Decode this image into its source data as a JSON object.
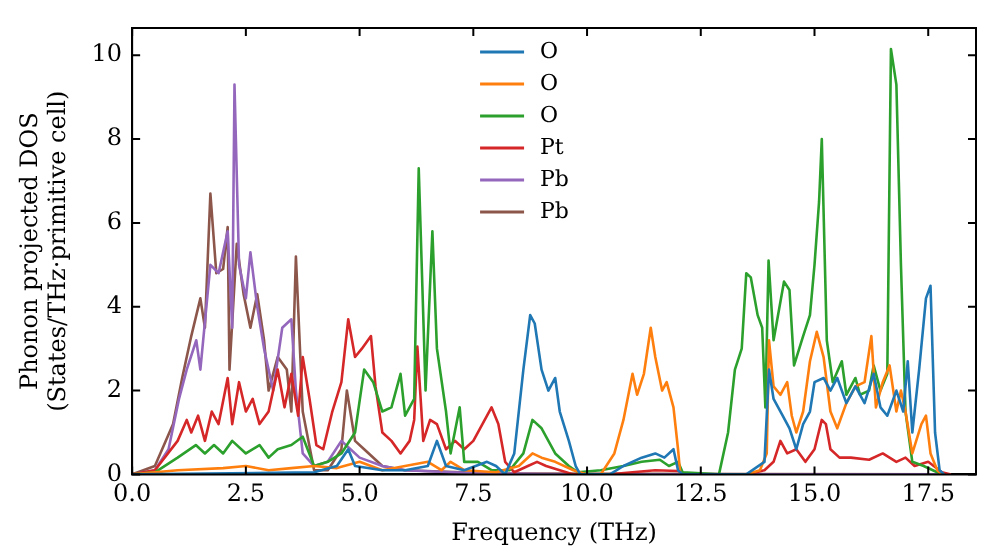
{
  "chart_data": {
    "type": "line",
    "xlabel": "Frequency (THz)",
    "ylabel": "Phonon projected DOS\n(States/THz·primitive cell)",
    "xlim": [
      0,
      18.55
    ],
    "ylim": [
      0,
      10.65
    ],
    "xticks": [
      {
        "value": 0,
        "label": "0.0"
      },
      {
        "value": 2.5,
        "label": "2.5"
      },
      {
        "value": 5,
        "label": "5.0"
      },
      {
        "value": 7.5,
        "label": "7.5"
      },
      {
        "value": 10,
        "label": "10.0"
      },
      {
        "value": 12.5,
        "label": "12.5"
      },
      {
        "value": 15,
        "label": "15.0"
      },
      {
        "value": 17.5,
        "label": "17.5"
      }
    ],
    "yticks": [
      0,
      2,
      4,
      6,
      8,
      10
    ],
    "grid": false,
    "legend": "top",
    "series": [
      {
        "name": "O",
        "color": "#1f77b4",
        "x": [
          0,
          4,
          4.5,
          4.75,
          4.9,
          5.5,
          6,
          6.5,
          6.7,
          6.9,
          7.3,
          7.8,
          8,
          8.2,
          8.4,
          8.6,
          8.75,
          8.85,
          9,
          9.15,
          9.3,
          9.4,
          9.6,
          9.75,
          9.85,
          10.5,
          10.8,
          11.2,
          11.5,
          11.7,
          11.9,
          12,
          12.1,
          13.5,
          13.9,
          14,
          14.1,
          14.3,
          14.45,
          14.6,
          14.75,
          14.9,
          15,
          15.2,
          15.35,
          15.5,
          15.7,
          15.9,
          16.1,
          16.3,
          16.45,
          16.6,
          16.8,
          16.95,
          17.05,
          17.15,
          17.3,
          17.45,
          17.55,
          17.65,
          17.75,
          17.85
        ],
        "values": [
          0,
          0.05,
          0.2,
          0.6,
          0.2,
          0.1,
          0.1,
          0.2,
          0.8,
          0.2,
          0.1,
          0.3,
          0.2,
          0,
          0.5,
          2.5,
          3.8,
          3.6,
          2.5,
          2,
          2.3,
          1.5,
          0.8,
          0.2,
          0,
          0,
          0.2,
          0.4,
          0.5,
          0.4,
          0.6,
          0.1,
          0,
          0,
          0.3,
          2.5,
          1.8,
          1.4,
          1.1,
          0.6,
          1.2,
          1.5,
          2.2,
          2.3,
          2,
          2.3,
          1.7,
          2.1,
          1.7,
          2.4,
          1.6,
          1.4,
          2,
          1.5,
          2.7,
          1,
          2.5,
          4.2,
          4.5,
          1,
          0.1,
          0
        ]
      },
      {
        "name": "O",
        "color": "#ff7f0e",
        "x": [
          0,
          1,
          2,
          2.5,
          3,
          3.5,
          4,
          4.5,
          5,
          5.5,
          6,
          6.5,
          6.8,
          7,
          7.3,
          8,
          8.5,
          8.8,
          9,
          9.3,
          9.7,
          10,
          10.3,
          10.6,
          10.8,
          11,
          11.1,
          11.25,
          11.4,
          11.5,
          11.65,
          11.75,
          11.9,
          12,
          12.05,
          13.5,
          13.8,
          13.95,
          14,
          14.1,
          14.25,
          14.4,
          14.5,
          14.6,
          14.75,
          14.9,
          15.05,
          15.2,
          15.35,
          15.5,
          15.7,
          15.9,
          16.1,
          16.25,
          16.35,
          16.5,
          16.65,
          16.8,
          16.9,
          17,
          17.15,
          17.35,
          17.45,
          17.55,
          17.7,
          17.8
        ],
        "values": [
          0,
          0.1,
          0.15,
          0.2,
          0.1,
          0.15,
          0.2,
          0.15,
          0.3,
          0.1,
          0.2,
          0.3,
          0.1,
          0.3,
          0.1,
          0.05,
          0.2,
          0.5,
          0.4,
          0.3,
          0.1,
          0,
          0,
          0.5,
          1.3,
          2.4,
          1.9,
          2.4,
          3.5,
          2.8,
          2,
          2.2,
          1.6,
          0.6,
          0,
          0,
          0.1,
          0.5,
          3.2,
          2.1,
          1.9,
          2.2,
          1.4,
          1,
          1.5,
          2.7,
          3.4,
          2.8,
          1.5,
          1.1,
          1.7,
          2.1,
          2.2,
          3.3,
          1.6,
          2.2,
          2.6,
          1.5,
          2,
          1.5,
          0.5,
          1.2,
          1.4,
          0.5,
          0.1,
          0
        ]
      },
      {
        "name": "O",
        "color": "#2ca02c",
        "x": [
          0,
          0.5,
          1,
          1.4,
          1.6,
          1.8,
          2,
          2.2,
          2.5,
          2.8,
          3,
          3.2,
          3.5,
          3.75,
          4,
          4.3,
          4.6,
          4.9,
          5.1,
          5.3,
          5.5,
          5.7,
          5.9,
          6,
          6.2,
          6.3,
          6.45,
          6.6,
          6.7,
          6.9,
          7,
          7.2,
          7.3,
          7.6,
          7.9,
          8.3,
          8.6,
          8.8,
          9,
          9.3,
          9.6,
          9.8,
          10.3,
          10.8,
          11.2,
          11.6,
          11.8,
          12,
          12.1,
          12.9,
          13.1,
          13.25,
          13.4,
          13.5,
          13.6,
          13.75,
          13.85,
          13.92,
          13.99,
          14.1,
          14.33,
          14.45,
          14.55,
          14.75,
          14.9,
          15,
          15.1,
          15.16,
          15.27,
          15.4,
          15.6,
          15.7,
          15.9,
          16,
          16.2,
          16.3,
          16.45,
          16.6,
          16.68,
          16.8,
          16.9,
          17,
          17.15,
          17.4,
          17.6,
          17.8
        ],
        "values": [
          0,
          0.05,
          0.4,
          0.7,
          0.5,
          0.7,
          0.5,
          0.8,
          0.5,
          0.7,
          0.4,
          0.6,
          0.7,
          0.9,
          0.2,
          0.3,
          0.5,
          1,
          2.5,
          2.2,
          1.5,
          1.6,
          2.4,
          1.4,
          1.8,
          7.3,
          2,
          5.8,
          3,
          1.5,
          0.5,
          1.6,
          0.3,
          0.3,
          0.1,
          0.1,
          0.5,
          1.3,
          1.1,
          0.5,
          0.2,
          0.05,
          0.1,
          0.2,
          0.3,
          0.35,
          0.2,
          0.3,
          0.05,
          0,
          1,
          2.5,
          3,
          4.8,
          4.7,
          3.8,
          3.5,
          1.6,
          5.1,
          3.2,
          4.6,
          4.4,
          2.6,
          3.3,
          3.8,
          5,
          6.5,
          8,
          3.2,
          2.2,
          2.7,
          1.9,
          2.3,
          1.9,
          2,
          2.6,
          2,
          2.4,
          10.15,
          9.3,
          5,
          1.5,
          0.3,
          0.2,
          0.1,
          0
        ]
      },
      {
        "name": "Pt",
        "color": "#d62728",
        "x": [
          0,
          0.5,
          1,
          1.2,
          1.3,
          1.45,
          1.6,
          1.75,
          1.9,
          2.1,
          2.2,
          2.35,
          2.5,
          2.65,
          2.8,
          3,
          3.2,
          3.35,
          3.5,
          3.65,
          3.75,
          3.9,
          4.05,
          4.2,
          4.4,
          4.6,
          4.75,
          4.9,
          5.05,
          5.25,
          5.35,
          5.5,
          5.7,
          5.9,
          6.1,
          6.2,
          6.27,
          6.4,
          6.55,
          6.7,
          6.9,
          7.1,
          7.3,
          7.5,
          7.7,
          7.9,
          8.05,
          8.2,
          8.4,
          8.7,
          8.9,
          9.1,
          9.4,
          9.7,
          10.5,
          11,
          11.5,
          12,
          12.2,
          13.5,
          13.9,
          14.1,
          14.25,
          14.4,
          14.6,
          14.8,
          15,
          15.16,
          15.25,
          15.35,
          15.55,
          15.8,
          16.2,
          16.5,
          16.8,
          17,
          17.2,
          17.5,
          17.8,
          18
        ],
        "values": [
          0,
          0.1,
          0.8,
          1.3,
          1,
          1.4,
          0.8,
          1.5,
          1.2,
          2.3,
          1.2,
          2.2,
          1.5,
          1.8,
          1.2,
          1.5,
          2.5,
          1.6,
          2.4,
          1.4,
          2.8,
          1.8,
          0.7,
          0.6,
          1.5,
          2.2,
          3.7,
          2.8,
          3,
          3.3,
          2.1,
          1,
          0.8,
          0.5,
          0.8,
          1.3,
          3.05,
          0.8,
          1.3,
          1.2,
          0.6,
          0.8,
          0.6,
          0.8,
          1.2,
          1.6,
          1.2,
          0.3,
          0.05,
          0.2,
          0.3,
          0.2,
          0.1,
          0,
          0,
          0.05,
          0.1,
          0.08,
          0,
          0,
          0.1,
          0.3,
          0.8,
          0.5,
          0.6,
          0.3,
          0.6,
          1.3,
          1.2,
          0.6,
          0.4,
          0.4,
          0.35,
          0.5,
          0.3,
          0.4,
          0.2,
          0.3,
          0.05,
          0
        ]
      },
      {
        "name": "Pb",
        "color": "#9467bd",
        "x": [
          0,
          0.5,
          0.8,
          1.03,
          1.2,
          1.41,
          1.5,
          1.72,
          1.9,
          2.1,
          2.2,
          2.25,
          2.35,
          2.5,
          2.6,
          2.75,
          2.9,
          3.1,
          3.3,
          3.5,
          3.6,
          3.75,
          4,
          4.3,
          4.6,
          4.8,
          5,
          5.5,
          6,
          7,
          8,
          9,
          10,
          18
        ],
        "values": [
          0,
          0.1,
          0.6,
          1.8,
          2.5,
          3.2,
          2.5,
          5,
          4.8,
          5.8,
          3.5,
          9.3,
          5,
          4.2,
          5.3,
          4,
          3,
          2,
          3.5,
          3.7,
          2,
          0.5,
          0.2,
          0.3,
          0.8,
          0.6,
          0.4,
          0.2,
          0.1,
          0.05,
          0.02,
          0.01,
          0,
          0
        ]
      },
      {
        "name": "Pb",
        "color": "#8c564b",
        "x": [
          0,
          0.5,
          0.9,
          1.1,
          1.3,
          1.5,
          1.6,
          1.72,
          1.85,
          2,
          2.1,
          2.14,
          2.3,
          2.45,
          2.6,
          2.75,
          2.9,
          3,
          3.2,
          3.4,
          3.5,
          3.6,
          3.75,
          4,
          4.3,
          4.6,
          4.72,
          4.9,
          5.1,
          5.5,
          6,
          8,
          18
        ],
        "values": [
          0,
          0.2,
          1.2,
          2.3,
          3.3,
          4.2,
          3.5,
          6.7,
          4.8,
          4.9,
          5.9,
          2.5,
          5.5,
          4.3,
          3.5,
          4.3,
          3.2,
          2,
          2.8,
          2.5,
          1.5,
          5.2,
          1.5,
          0.1,
          0.1,
          0.6,
          2,
          0.8,
          0.6,
          0.2,
          0.1,
          0.02,
          0
        ]
      }
    ]
  }
}
